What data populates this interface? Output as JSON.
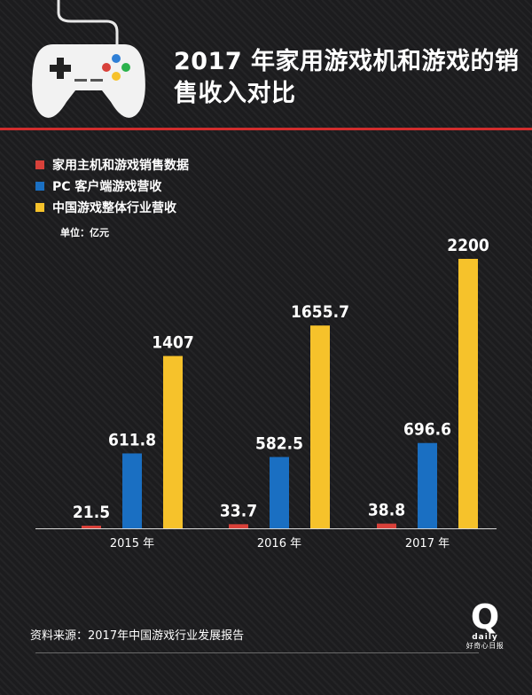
{
  "header": {
    "title": "2017 年家用游戏机和游戏的销售收入对比",
    "icon": "gamepad-icon",
    "accent_color": "#d12d2d"
  },
  "chart_data": {
    "type": "bar",
    "title": "2017 年家用游戏机和游戏的销售收入对比",
    "categories": [
      "2015 年",
      "2016 年",
      "2017 年"
    ],
    "series": [
      {
        "name": "家用主机和游戏销售数据",
        "values": [
          21.5,
          33.7,
          38.8
        ],
        "color": "#d8413a"
      },
      {
        "name": "PC 客户端游戏营收",
        "values": [
          611.8,
          582.5,
          696.6
        ],
        "color": "#1a6fc2"
      },
      {
        "name": "中国游戏整体行业营收",
        "values": [
          1407,
          1655.7,
          2200
        ],
        "color": "#f6c22b"
      }
    ],
    "value_labels": [
      [
        "21.5",
        "33.7",
        "38.8"
      ],
      [
        "611.8",
        "582.5",
        "696.6"
      ],
      [
        "1407",
        "1655.7",
        "2200"
      ]
    ],
    "unit": "单位：亿元",
    "ylim": [
      0,
      2200
    ],
    "grid": false,
    "legend_position": "top-left"
  },
  "footer": {
    "source": "资料来源：2017年中国游戏行业发展报告",
    "logo_letter": "Q",
    "logo_word": "daily",
    "logo_cn": "好奇心日报"
  }
}
